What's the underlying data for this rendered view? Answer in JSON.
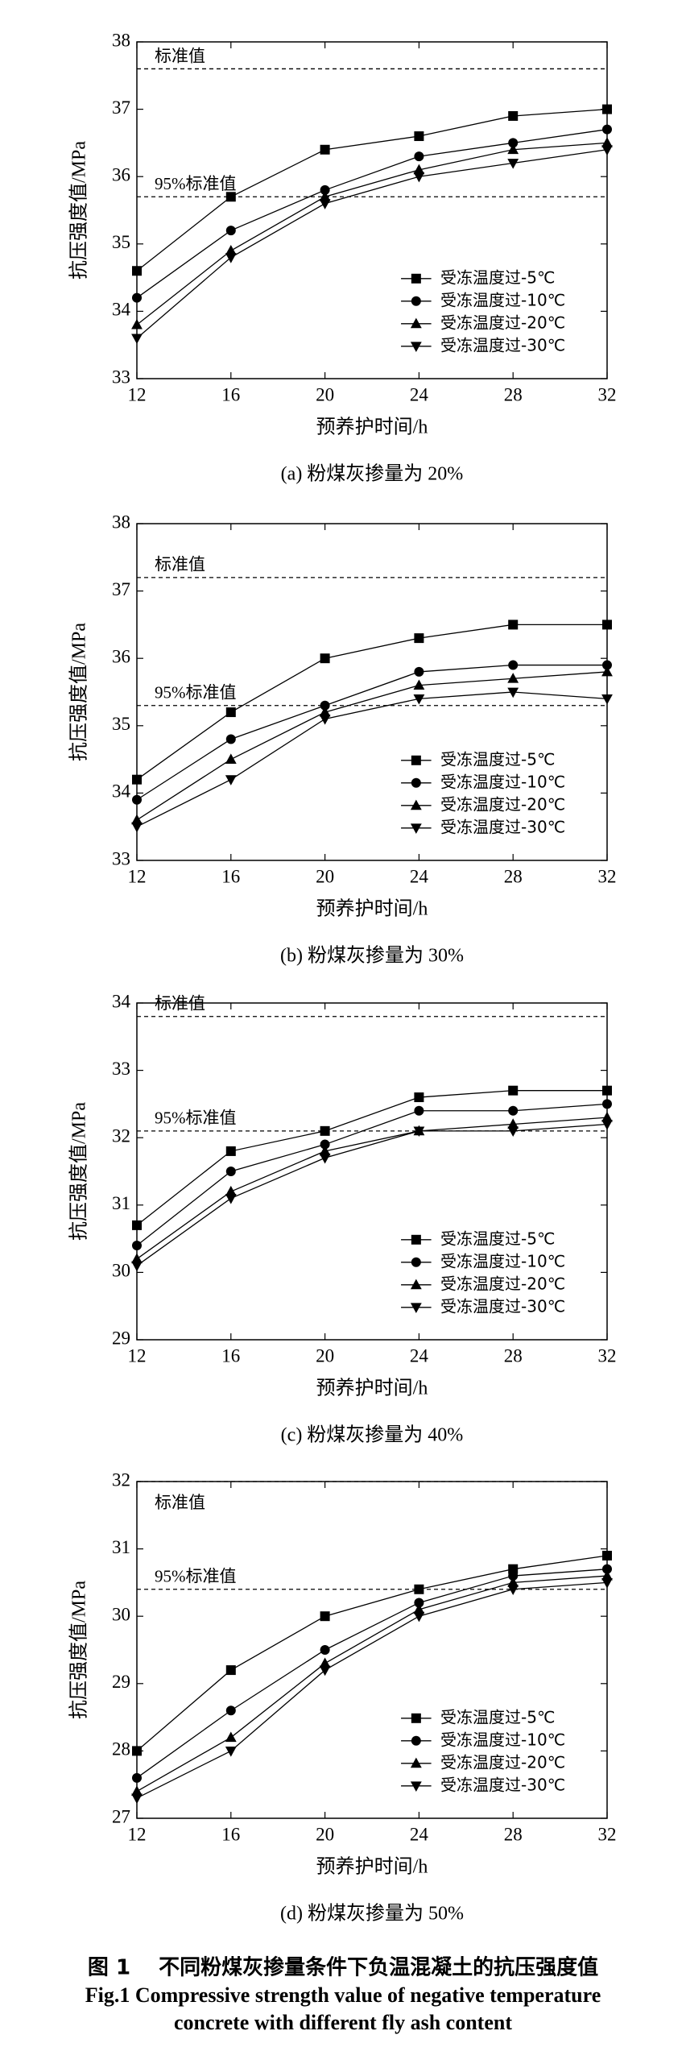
{
  "chart_data": [
    {
      "type": "line",
      "caption": "(a) 粉煤灰掺量为 20%",
      "xlabel": "预养护时间/h",
      "ylabel": "抗压强度值/MPa",
      "x": [
        12,
        16,
        20,
        24,
        28,
        32
      ],
      "xlim": [
        12,
        32
      ],
      "xticks": [
        12,
        16,
        20,
        24,
        28,
        32
      ],
      "ylim": [
        33,
        38
      ],
      "yticks": [
        33,
        34,
        35,
        36,
        37,
        38
      ],
      "annotations": [
        {
          "text": "标准值",
          "value": 37.6
        },
        {
          "text": "95%标准值",
          "value": 35.7
        }
      ],
      "series": [
        {
          "name": "受冻温度过-5℃",
          "color": "#000000",
          "marker": "square",
          "values": [
            34.6,
            35.7,
            36.4,
            36.6,
            36.9,
            37.0
          ]
        },
        {
          "name": "受冻温度过-10℃",
          "color": "#000000",
          "marker": "circle",
          "values": [
            34.2,
            35.2,
            35.8,
            36.3,
            36.5,
            36.7
          ]
        },
        {
          "name": "受冻温度过-20℃",
          "color": "#000000",
          "marker": "triangle-up",
          "values": [
            33.8,
            34.9,
            35.7,
            36.1,
            36.4,
            36.5
          ]
        },
        {
          "name": "受冻温度过-30℃",
          "color": "#000000",
          "marker": "triangle-down",
          "values": [
            33.6,
            34.8,
            35.6,
            36.0,
            36.2,
            36.4
          ]
        }
      ]
    },
    {
      "type": "line",
      "caption": "(b) 粉煤灰掺量为 30%",
      "xlabel": "预养护时间/h",
      "ylabel": "抗压强度值/MPa",
      "x": [
        12,
        16,
        20,
        24,
        28,
        32
      ],
      "xlim": [
        12,
        32
      ],
      "xticks": [
        12,
        16,
        20,
        24,
        28,
        32
      ],
      "ylim": [
        33,
        38
      ],
      "yticks": [
        33,
        34,
        35,
        36,
        37,
        38
      ],
      "annotations": [
        {
          "text": "标准值",
          "value": 37.2
        },
        {
          "text": "95%标准值",
          "value": 35.3
        }
      ],
      "series": [
        {
          "name": "受冻温度过-5℃",
          "color": "#000000",
          "marker": "square",
          "values": [
            34.2,
            35.2,
            36.0,
            36.3,
            36.5,
            36.5
          ]
        },
        {
          "name": "受冻温度过-10℃",
          "color": "#000000",
          "marker": "circle",
          "values": [
            33.9,
            34.8,
            35.3,
            35.8,
            35.9,
            35.9
          ]
        },
        {
          "name": "受冻温度过-20℃",
          "color": "#000000",
          "marker": "triangle-up",
          "values": [
            33.6,
            34.5,
            35.2,
            35.6,
            35.7,
            35.8
          ]
        },
        {
          "name": "受冻温度过-30℃",
          "color": "#000000",
          "marker": "triangle-down",
          "values": [
            33.5,
            34.2,
            35.1,
            35.4,
            35.5,
            35.4
          ]
        }
      ]
    },
    {
      "type": "line",
      "caption": "(c) 粉煤灰掺量为 40%",
      "xlabel": "预养护时间/h",
      "ylabel": "抗压强度值/MPa",
      "x": [
        12,
        16,
        20,
        24,
        28,
        32
      ],
      "xlim": [
        12,
        32
      ],
      "xticks": [
        12,
        16,
        20,
        24,
        28,
        32
      ],
      "ylim": [
        29,
        34
      ],
      "yticks": [
        29,
        30,
        31,
        32,
        33,
        34
      ],
      "annotations": [
        {
          "text": "标准值",
          "value": 33.8
        },
        {
          "text": "95%标准值",
          "value": 32.1
        }
      ],
      "series": [
        {
          "name": "受冻温度过-5℃",
          "color": "#000000",
          "marker": "square",
          "values": [
            30.7,
            31.8,
            32.1,
            32.6,
            32.7,
            32.7
          ]
        },
        {
          "name": "受冻温度过-10℃",
          "color": "#000000",
          "marker": "circle",
          "values": [
            30.4,
            31.5,
            31.9,
            32.4,
            32.4,
            32.5
          ]
        },
        {
          "name": "受冻温度过-20℃",
          "color": "#000000",
          "marker": "triangle-up",
          "values": [
            30.2,
            31.2,
            31.8,
            32.1,
            32.2,
            32.3
          ]
        },
        {
          "name": "受冻温度过-30℃",
          "color": "#000000",
          "marker": "triangle-down",
          "values": [
            30.1,
            31.1,
            31.7,
            32.1,
            32.1,
            32.2
          ]
        }
      ]
    },
    {
      "type": "line",
      "caption": "(d) 粉煤灰掺量为 50%",
      "xlabel": "预养护时间/h",
      "ylabel": "抗压强度值/MPa",
      "x": [
        12,
        16,
        20,
        24,
        28,
        32
      ],
      "xlim": [
        12,
        32
      ],
      "xticks": [
        12,
        16,
        20,
        24,
        28,
        32
      ],
      "ylim": [
        27,
        32
      ],
      "yticks": [
        27,
        28,
        29,
        30,
        31,
        32
      ],
      "annotations": [
        {
          "text": "标准值",
          "value": 32
        },
        {
          "text": "95%标准值",
          "value": 30.4
        }
      ],
      "series": [
        {
          "name": "受冻温度过-5℃",
          "color": "#000000",
          "marker": "square",
          "values": [
            28.0,
            29.2,
            30.0,
            30.4,
            30.7,
            30.9
          ]
        },
        {
          "name": "受冻温度过-10℃",
          "color": "#000000",
          "marker": "circle",
          "values": [
            27.6,
            28.6,
            29.5,
            30.2,
            30.6,
            30.7
          ]
        },
        {
          "name": "受冻温度过-20℃",
          "color": "#000000",
          "marker": "triangle-up",
          "values": [
            27.4,
            28.2,
            29.3,
            30.1,
            30.5,
            30.6
          ]
        },
        {
          "name": "受冻温度过-30℃",
          "color": "#000000",
          "marker": "triangle-down",
          "values": [
            27.3,
            28.0,
            29.2,
            30.0,
            30.4,
            30.5
          ]
        }
      ]
    }
  ],
  "figure_caption": [
    "图 1　 不同粉煤灰掺量条件下负温混凝土的抗压强度值",
    "Fig.1 Compressive strength value of negative temperature",
    "concrete with different fly ash content"
  ]
}
